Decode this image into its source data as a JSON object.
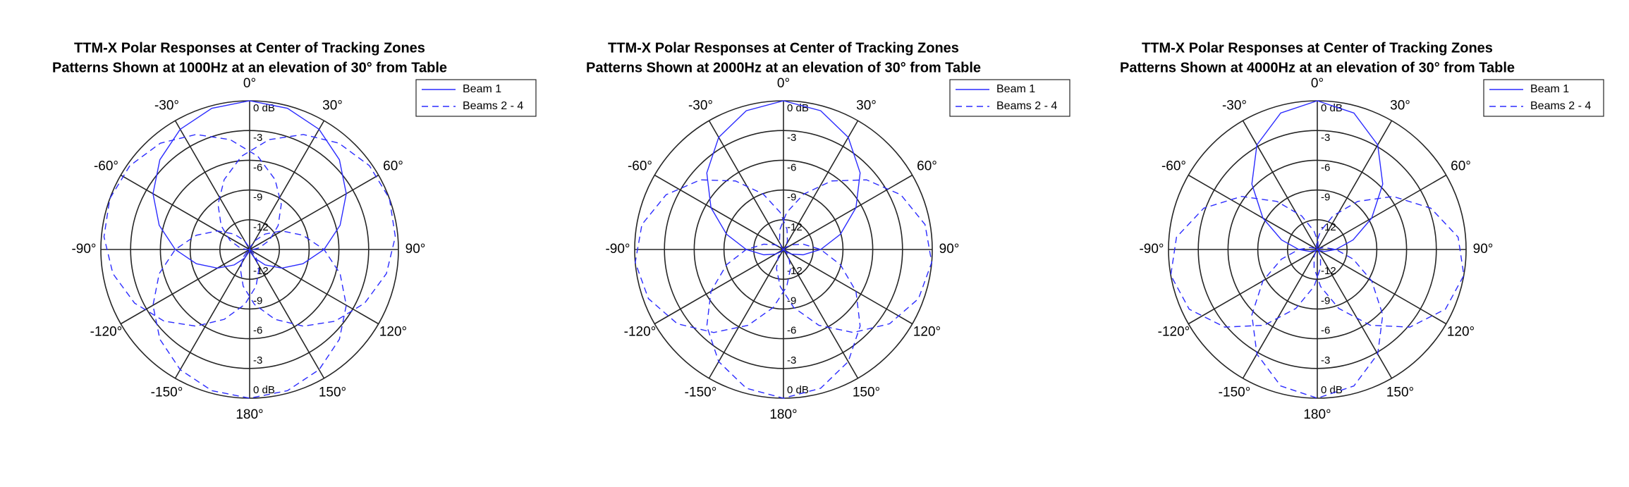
{
  "chart_data": [
    {
      "type": "polar",
      "title": "TTM-X Polar Responses at Center of Tracking Zones",
      "subtitle": "Patterns Shown at 1000Hz at an elevation of 30° from Table",
      "theta_zero_location": "top",
      "theta_direction": "clockwise",
      "rlim": [
        -15,
        0
      ],
      "rticks": [
        -12,
        -9,
        -6,
        -3,
        {
          "value": 0,
          "label": "0 dB"
        }
      ],
      "thetaticks": [
        {
          "value": 0,
          "label": "0°"
        },
        {
          "value": 30,
          "label": "30°"
        },
        {
          "value": 60,
          "label": "60°"
        },
        {
          "value": 90,
          "label": "90°"
        },
        {
          "value": 120,
          "label": "120°"
        },
        {
          "value": 150,
          "label": "150°"
        },
        {
          "value": 180,
          "label": "180°"
        },
        {
          "value": -150,
          "label": "-150°"
        },
        {
          "value": -120,
          "label": "-120°"
        },
        {
          "value": -90,
          "label": "-90°"
        },
        {
          "value": -60,
          "label": "-60°"
        },
        {
          "value": -30,
          "label": "-30°"
        }
      ],
      "grid": true,
      "legend": "northeast",
      "series": [
        {
          "name": "Beam 1",
          "color": "#2b2bff",
          "linestyle": "solid",
          "theta": [
            -180,
            -165,
            -150,
            -135,
            -120,
            -105,
            -90,
            -75,
            -60,
            -45,
            -30,
            -15,
            0,
            15,
            30,
            45,
            60,
            75,
            90,
            105,
            120,
            135,
            150,
            165,
            180
          ],
          "values": [
            -15,
            -14.74,
            -14,
            -12.8,
            -11.25,
            -9.44,
            -7.5,
            -5.56,
            -3.75,
            -2.2,
            -1,
            -0.26,
            0,
            -0.26,
            -1,
            -2.2,
            -3.75,
            -5.56,
            -7.5,
            -9.44,
            -11.25,
            -12.8,
            -14,
            -14.74,
            -15
          ]
        },
        {
          "name": "Beams 2 - 4",
          "color": "#2b2bff",
          "linestyle": "dashed",
          "theta": [
            -110,
            -95,
            -80,
            -65,
            -50,
            -35,
            -20,
            -5,
            10,
            25,
            40,
            55,
            70,
            85,
            100,
            115,
            130,
            145,
            160,
            175,
            190,
            205,
            220,
            235,
            250,
            null,
            -250,
            -235,
            -220,
            -205,
            -190,
            -175,
            -160,
            -145,
            -130,
            -115,
            -100,
            -85,
            -70,
            -55,
            -40,
            -25,
            -10,
            5,
            20,
            35,
            50,
            65,
            80,
            95,
            110,
            null,
            0,
            15,
            30,
            45,
            60,
            75,
            90,
            105,
            120,
            135,
            150,
            165,
            180,
            195,
            210,
            225,
            240,
            255,
            270,
            285,
            300,
            315,
            330,
            345,
            360
          ],
          "values": [
            -15,
            -14.74,
            -14,
            -12.8,
            -11.25,
            -9.44,
            -7.5,
            -5.56,
            -3.75,
            -2.2,
            -1,
            -0.26,
            0,
            -0.26,
            -1,
            -2.2,
            -3.75,
            -5.56,
            -7.5,
            -9.44,
            -11.25,
            -12.8,
            -14,
            -14.74,
            -15,
            null,
            -15,
            -14.74,
            -14,
            -12.8,
            -11.25,
            -9.44,
            -7.5,
            -5.56,
            -3.75,
            -2.2,
            -1,
            -0.26,
            0,
            -0.26,
            -1,
            -2.2,
            -3.75,
            -5.56,
            -7.5,
            -9.44,
            -11.25,
            -12.8,
            -14,
            -14.74,
            -15,
            null,
            -15,
            -14.74,
            -14,
            -12.8,
            -11.25,
            -9.44,
            -7.5,
            -5.56,
            -3.75,
            -2.2,
            -1,
            -0.26,
            0,
            -0.26,
            -1,
            -2.2,
            -3.75,
            -5.56,
            -7.5,
            -9.44,
            -11.25,
            -12.8,
            -14,
            -14.74,
            -15
          ]
        }
      ]
    },
    {
      "type": "polar",
      "title": "TTM-X Polar Responses at Center of Tracking Zones",
      "subtitle": "Patterns Shown at 2000Hz at an elevation of 30° from Table",
      "theta_zero_location": "top",
      "theta_direction": "clockwise",
      "rlim": [
        -15,
        0
      ],
      "rticks": [
        -12,
        -9,
        -6,
        -3,
        {
          "value": 0,
          "label": "0 dB"
        }
      ],
      "thetaticks": [
        {
          "value": 0,
          "label": "0°"
        },
        {
          "value": 30,
          "label": "30°"
        },
        {
          "value": 60,
          "label": "60°"
        },
        {
          "value": 90,
          "label": "90°"
        },
        {
          "value": 120,
          "label": "120°"
        },
        {
          "value": 150,
          "label": "150°"
        },
        {
          "value": 180,
          "label": "180°"
        },
        {
          "value": -150,
          "label": "-150°"
        },
        {
          "value": -120,
          "label": "-120°"
        },
        {
          "value": -90,
          "label": "-90°"
        },
        {
          "value": -60,
          "label": "-60°"
        },
        {
          "value": -30,
          "label": "-30°"
        }
      ],
      "grid": true,
      "legend": "northeast",
      "series": [
        {
          "name": "Beam 1",
          "color": "#2b2bff",
          "linestyle": "solid",
          "theta": [
            -180,
            -165,
            -150,
            -135,
            -120,
            -105,
            -90,
            -75,
            -60,
            -45,
            -30,
            -15,
            0,
            15,
            30,
            45,
            60,
            75,
            90,
            105,
            120,
            135,
            150,
            165,
            180
          ],
          "values": [
            -15,
            -15,
            -14.93,
            -14.68,
            -14.06,
            -12.94,
            -11.25,
            -9.06,
            -6.56,
            -4.07,
            -1.94,
            -0.51,
            0,
            -0.51,
            -1.94,
            -4.07,
            -6.56,
            -9.06,
            -11.25,
            -12.94,
            -14.06,
            -14.68,
            -14.93,
            -15,
            -15
          ]
        },
        {
          "name": "Beams 2 - 4",
          "color": "#2b2bff",
          "linestyle": "dashed",
          "theta": [
            -85,
            -70,
            -55,
            -40,
            -25,
            -10,
            5,
            20,
            35,
            50,
            65,
            80,
            95,
            110,
            125,
            140,
            155,
            170,
            185,
            200,
            215,
            230,
            245,
            260,
            275,
            null,
            -275,
            -260,
            -245,
            -230,
            -215,
            -200,
            -185,
            -170,
            -155,
            -140,
            -125,
            -110,
            -95,
            -80,
            -65,
            -50,
            -35,
            -20,
            -5,
            10,
            25,
            40,
            55,
            70,
            85,
            null,
            0,
            15,
            30,
            45,
            60,
            75,
            90,
            105,
            120,
            135,
            150,
            165,
            180,
            195,
            210,
            225,
            240,
            255,
            270,
            285,
            300,
            315,
            330,
            345,
            360
          ],
          "values": [
            -15,
            -15,
            -14.93,
            -14.68,
            -14.06,
            -12.94,
            -11.25,
            -9.06,
            -6.56,
            -4.07,
            -1.94,
            -0.51,
            0,
            -0.51,
            -1.94,
            -4.07,
            -6.56,
            -9.06,
            -11.25,
            -12.94,
            -14.06,
            -14.68,
            -14.93,
            -15,
            -15,
            null,
            -15,
            -15,
            -14.93,
            -14.68,
            -14.06,
            -12.94,
            -11.25,
            -9.06,
            -6.56,
            -4.07,
            -1.94,
            -0.51,
            0,
            -0.51,
            -1.94,
            -4.07,
            -6.56,
            -9.06,
            -11.25,
            -12.94,
            -14.06,
            -14.68,
            -14.93,
            -15,
            -15,
            null,
            -15,
            -15,
            -14.93,
            -14.68,
            -14.06,
            -12.94,
            -11.25,
            -9.06,
            -6.56,
            -4.07,
            -1.94,
            -0.51,
            0,
            -0.51,
            -1.94,
            -4.07,
            -6.56,
            -9.06,
            -11.25,
            -12.94,
            -14.06,
            -14.68,
            -14.93,
            -15,
            -15
          ]
        }
      ]
    },
    {
      "type": "polar",
      "title": "TTM-X Polar Responses at Center of Tracking Zones",
      "subtitle": "Patterns Shown at 4000Hz at an elevation of 30° from Table",
      "theta_zero_location": "top",
      "theta_direction": "clockwise",
      "rlim": [
        -15,
        0
      ],
      "rticks": [
        -12,
        -9,
        -6,
        -3,
        {
          "value": 0,
          "label": "0 dB"
        }
      ],
      "thetaticks": [
        {
          "value": 0,
          "label": "0°"
        },
        {
          "value": 30,
          "label": "30°"
        },
        {
          "value": 60,
          "label": "60°"
        },
        {
          "value": 90,
          "label": "90°"
        },
        {
          "value": 120,
          "label": "120°"
        },
        {
          "value": 150,
          "label": "150°"
        },
        {
          "value": 180,
          "label": "180°"
        },
        {
          "value": -150,
          "label": "-150°"
        },
        {
          "value": -120,
          "label": "-120°"
        },
        {
          "value": -90,
          "label": "-90°"
        },
        {
          "value": -60,
          "label": "-60°"
        },
        {
          "value": -30,
          "label": "-30°"
        }
      ],
      "grid": true,
      "legend": "northeast",
      "series": [
        {
          "name": "Beam 1",
          "color": "#2b2bff",
          "linestyle": "solid",
          "theta": [
            -180,
            -165,
            -150,
            -135,
            -120,
            -105,
            -90,
            -75,
            -60,
            -45,
            -30,
            -15,
            0,
            15,
            30,
            45,
            60,
            75,
            90,
            105,
            120,
            135,
            150,
            165,
            180
          ],
          "values": [
            -15,
            -15,
            -15,
            -14.95,
            -14.77,
            -14.24,
            -13.13,
            -11.26,
            -8.67,
            -5.67,
            -2.82,
            -0.75,
            0,
            -0.75,
            -2.82,
            -5.67,
            -8.67,
            -11.26,
            -13.13,
            -14.24,
            -14.77,
            -14.95,
            -15,
            -15,
            -15
          ]
        },
        {
          "name": "Beams 2 - 4",
          "color": "#2b2bff",
          "linestyle": "dashed",
          "theta": [
            -80,
            -65,
            -50,
            -35,
            -20,
            -5,
            10,
            25,
            40,
            55,
            70,
            85,
            100,
            115,
            130,
            145,
            160,
            175,
            190,
            205,
            220,
            235,
            250,
            265,
            280,
            null,
            -280,
            -265,
            -250,
            -235,
            -220,
            -205,
            -190,
            -175,
            -160,
            -145,
            -130,
            -115,
            -100,
            -85,
            -70,
            -55,
            -40,
            -25,
            -10,
            5,
            20,
            35,
            50,
            65,
            80,
            null,
            0,
            15,
            30,
            45,
            60,
            75,
            90,
            105,
            120,
            135,
            150,
            165,
            180,
            195,
            210,
            225,
            240,
            255,
            270,
            285,
            300,
            315,
            330,
            345,
            360
          ],
          "values": [
            -15,
            -15,
            -15,
            -14.95,
            -14.77,
            -14.24,
            -13.13,
            -11.26,
            -8.67,
            -5.67,
            -2.82,
            -0.75,
            0,
            -0.75,
            -2.82,
            -5.67,
            -8.67,
            -11.26,
            -13.13,
            -14.24,
            -14.77,
            -14.95,
            -15,
            -15,
            -15,
            null,
            -15,
            -15,
            -15,
            -14.95,
            -14.77,
            -14.24,
            -13.13,
            -11.26,
            -8.67,
            -5.67,
            -2.82,
            -0.75,
            0,
            -0.75,
            -2.82,
            -5.67,
            -8.67,
            -11.26,
            -13.13,
            -14.24,
            -14.77,
            -14.95,
            -15,
            -15,
            -15,
            null,
            -15,
            -15,
            -15,
            -14.95,
            -14.77,
            -14.24,
            -13.13,
            -11.26,
            -8.67,
            -5.67,
            -2.82,
            -0.75,
            0,
            -0.75,
            -2.82,
            -5.67,
            -8.67,
            -11.26,
            -13.13,
            -14.24,
            -14.77,
            -14.95,
            -15,
            -15,
            -15
          ]
        }
      ]
    }
  ]
}
